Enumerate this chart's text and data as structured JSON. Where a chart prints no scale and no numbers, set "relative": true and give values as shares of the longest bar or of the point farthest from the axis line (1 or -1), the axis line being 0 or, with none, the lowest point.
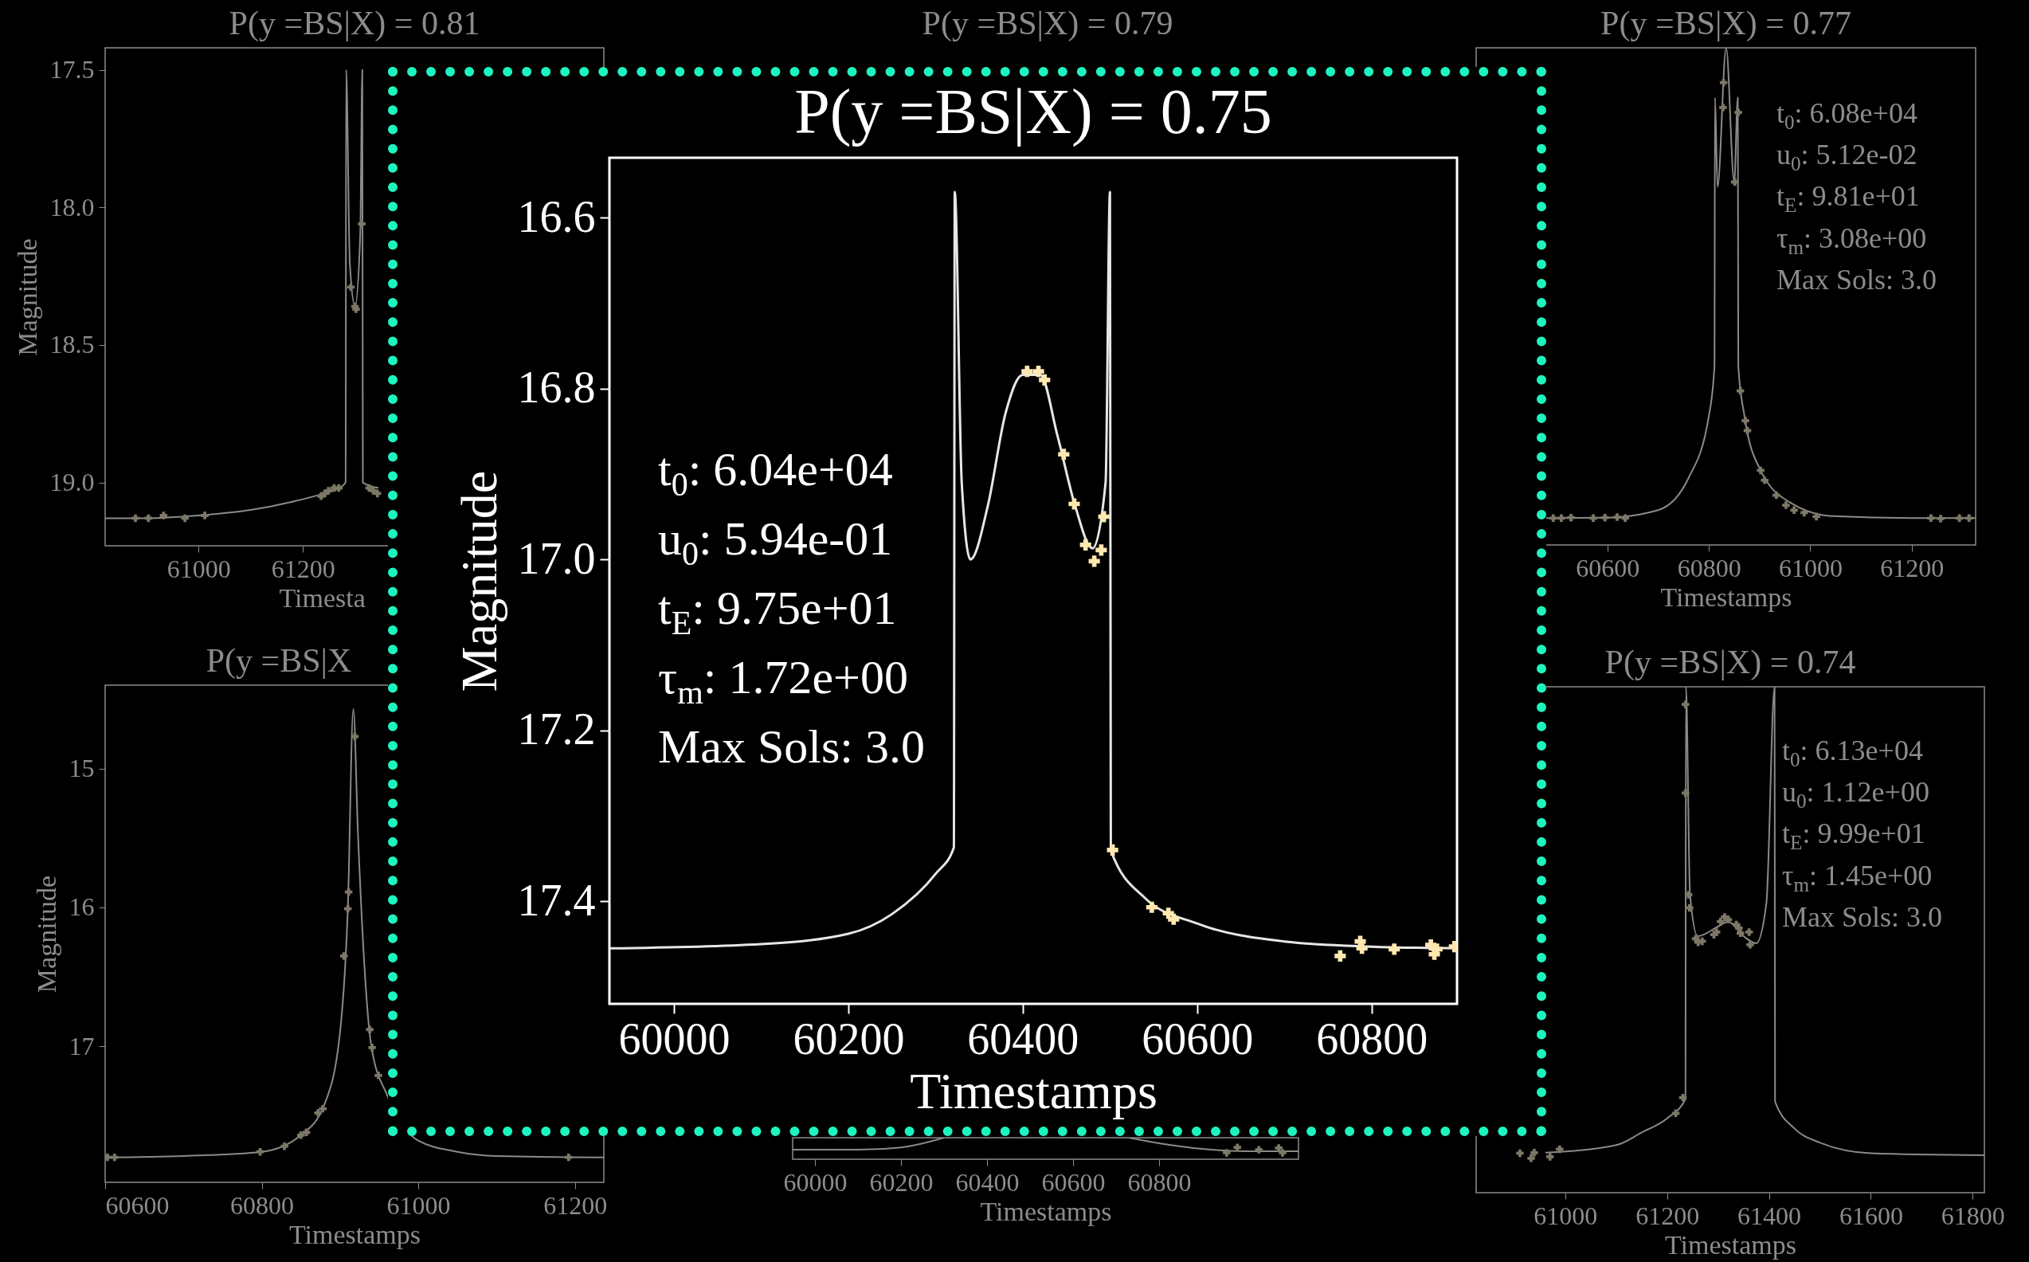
{
  "chart_data": [
    {
      "type": "line",
      "title": "P(y =BS|X) = 0.81",
      "xlabel": "Timesta",
      "ylabel": "Magnitude",
      "xlim": [
        60821,
        61777
      ],
      "xticks": [
        61000,
        61200
      ],
      "ylim": [
        19.23,
        17.42
      ],
      "yticks": [
        17.5,
        {
          "value": 18,
          "label": "18.0"
        },
        18.5,
        {
          "value": 19,
          "label": "19.0"
        }
      ],
      "series": [
        {
          "type": "line",
          "color": "#8a8a88",
          "x": [
            60821,
            60900,
            61000,
            61100,
            61180,
            61240,
            61270,
            61282,
            61283,
            61290,
            61300,
            61310,
            61314,
            61315,
            61345
          ],
          "values": [
            19.13,
            19.13,
            19.12,
            19.1,
            19.07,
            19.04,
            19.02,
            19.0,
            17.5,
            18.2,
            18.36,
            18.1,
            17.5,
            19.0,
            19.02
          ]
        },
        {
          "type": "scatter",
          "marker": "cross",
          "color": "#7d7866",
          "x": [
            60879,
            60904,
            60933,
            60974,
            61012,
            61235,
            61242,
            61249,
            61260,
            61269,
            61292,
            61300,
            61302,
            61313,
            61327,
            61335,
            61343
          ],
          "values": [
            19.13,
            19.13,
            19.12,
            19.13,
            19.12,
            19.05,
            19.04,
            19.03,
            19.02,
            19.02,
            18.29,
            18.36,
            18.37,
            18.06,
            19.02,
            19.03,
            19.04
          ]
        }
      ]
    },
    {
      "type": "other",
      "title": "P(y =BS|X) = 0.79"
    },
    {
      "type": "line",
      "title": "P(y =BS|X) = 0.77",
      "xlabel": "Timestamps",
      "relative": true,
      "xlim": [
        60341,
        61326
      ],
      "xticks": [
        60600,
        60800,
        61000,
        61200
      ],
      "annotations": [
        "t$_{0}$: 6.08e+04",
        "u$_{0}$: 5.12e-02",
        "t$_{E}$: 9.81e+01",
        "τ$_{m}$: 3.08e+00",
        "Max Sols: 3.0"
      ],
      "series": [
        {
          "type": "line",
          "color": "#8a8a88",
          "x": [
            60477,
            60600,
            60700,
            60760,
            60800,
            60811,
            60812,
            60817,
            60834,
            60850,
            60857,
            60858,
            60870,
            60902,
            60964,
            61043,
            61200,
            61326
          ],
          "values": [
            0.054,
            0.055,
            0.07,
            0.135,
            0.26,
            0.36,
            0.9,
            0.72,
            1.0,
            0.73,
            0.9,
            0.36,
            0.26,
            0.15,
            0.083,
            0.058,
            0.054,
            0.054
          ]
        },
        {
          "type": "scatter",
          "marker": "cross",
          "color": "#7d7866",
          "x": [
            60493,
            60509,
            60528,
            60572,
            60595,
            60619,
            60635,
            60828,
            60829,
            60851,
            60858,
            60862,
            60872,
            60876,
            60902,
            60910,
            60933,
            60952,
            60968,
            60988,
            61012,
            61238,
            61257,
            61294,
            61313
          ],
          "values": [
            0.054,
            0.054,
            0.055,
            0.054,
            0.055,
            0.056,
            0.054,
            0.88,
            0.93,
            0.73,
            0.87,
            0.31,
            0.25,
            0.23,
            0.15,
            0.13,
            0.1,
            0.08,
            0.07,
            0.065,
            0.057,
            0.054,
            0.053,
            0.054,
            0.054
          ]
        }
      ]
    },
    {
      "type": "line",
      "title": "P(y =BS|X",
      "xlabel": "Timestamps",
      "ylabel": "Magnitude",
      "xlim": [
        60600,
        61237
      ],
      "xticks": [
        60600,
        60800,
        61000,
        61200
      ],
      "ylim": [
        17.98,
        14.4
      ],
      "yticks": [
        15,
        16,
        17
      ],
      "series": [
        {
          "type": "line",
          "color": "#8a8a88",
          "x": [
            60600,
            60700,
            60800,
            60850,
            60880,
            60900,
            60910,
            60917,
            60923,
            60940,
            60960,
            61000,
            61050,
            61100,
            61237
          ],
          "values": [
            17.8,
            17.79,
            17.76,
            17.64,
            17.42,
            16.9,
            16.0,
            14.57,
            15.48,
            17.0,
            17.35,
            17.68,
            17.76,
            17.79,
            17.8
          ]
        },
        {
          "type": "scatter",
          "marker": "cross",
          "color": "#7d7866",
          "x": [
            60603,
            60612,
            60798,
            60829,
            60850,
            60857,
            60872,
            60878,
            60905,
            60910,
            60911,
            60919,
            60938,
            60941,
            60949,
            61192
          ],
          "values": [
            17.8,
            17.8,
            17.76,
            17.72,
            17.64,
            17.62,
            17.48,
            17.45,
            16.35,
            16.01,
            15.89,
            14.77,
            16.88,
            17.01,
            17.21,
            17.8
          ]
        }
      ]
    },
    {
      "type": "line",
      "xlabel": "Timestamps",
      "relative": true,
      "xlim": [
        59948,
        61124
      ],
      "xticks": [
        60000,
        60200,
        60400,
        60600,
        60800
      ],
      "series": [
        {
          "type": "line",
          "color": "#8a8a88",
          "x": [
            59948,
            60100,
            60200,
            60300
          ],
          "values": [
            0.44,
            0.44,
            0.55,
            1.0
          ]
        },
        {
          "type": "line",
          "color": "#8a8a88",
          "x": [
            60730,
            60800,
            60900,
            61000,
            61124
          ],
          "values": [
            1.0,
            0.74,
            0.48,
            0.37,
            0.37
          ]
        },
        {
          "type": "scatter",
          "marker": "cross",
          "color": "#7d7866",
          "x": [
            60957,
            60982,
            61032,
            61078,
            61087
          ],
          "values": [
            0.3,
            0.55,
            0.44,
            0.52,
            0.3
          ]
        }
      ]
    },
    {
      "type": "line",
      "title": "P(y =BS|X) = 0.74",
      "xlabel": "Timestamps",
      "relative": true,
      "xlim": [
        60825,
        61823
      ],
      "xticks": [
        61000,
        61200,
        61400,
        61600,
        61800
      ],
      "annotations": [
        "t$_{0}$: 6.13e+04",
        "u$_{0}$: 1.12e+00",
        "t$_{E}$: 9.99e+01",
        "τ$_{m}$: 1.45e+00",
        "Max Sols: 3.0"
      ],
      "series": [
        {
          "type": "line",
          "color": "#8a8a88",
          "x": [
            60961,
            61100,
            61150,
            61200,
            61236,
            61237,
            61245,
            61260,
            61300,
            61320,
            61350,
            61375,
            61395,
            61411,
            61412,
            61450,
            61500,
            61600,
            61823
          ],
          "values": [
            0.079,
            0.094,
            0.119,
            0.147,
            0.185,
            1.0,
            0.589,
            0.507,
            0.526,
            0.536,
            0.507,
            0.493,
            0.573,
            1.0,
            0.18,
            0.127,
            0.099,
            0.078,
            0.074
          ]
        },
        {
          "type": "scatter",
          "marker": "cross",
          "color": "#7d7866",
          "x": [
            60911,
            60933,
            60939,
            60970,
            60989,
            61217,
            61231,
            61236,
            61236,
            61242,
            61244,
            61256,
            61261,
            61269,
            61292,
            61297,
            61305,
            61313,
            61320,
            61336,
            61341,
            61344,
            61361,
            61363
          ],
          "values": [
            0.078,
            0.068,
            0.079,
            0.071,
            0.086,
            0.157,
            0.188,
            0.965,
            0.79,
            0.589,
            0.563,
            0.502,
            0.495,
            0.497,
            0.51,
            0.515,
            0.536,
            0.545,
            0.54,
            0.53,
            0.523,
            0.513,
            0.515,
            0.49
          ]
        }
      ]
    },
    {
      "type": "line",
      "title": "P(y =BS|X) = 0.75",
      "xlabel": "Timestamps",
      "ylabel": "Magnitude",
      "xlim": [
        59926,
        60898
      ],
      "xticks": [
        60000,
        60200,
        60400,
        60600,
        60800
      ],
      "ylim": [
        17.52,
        16.53
      ],
      "yticks": [
        16.6,
        16.8,
        {
          "value": 17,
          "label": "17.0"
        },
        17.2,
        17.4
      ],
      "annotations": [
        "t$_{0}$: 6.04e+04",
        "u$_{0}$: 5.94e-01",
        "t$_{E}$: 9.75e+01",
        "τ$_{m}$: 1.72e+00",
        "Max Sols: 3.0"
      ],
      "series": [
        {
          "type": "line",
          "color": "#e6e6e6",
          "x": [
            59926,
            60100,
            60200,
            60250,
            60300,
            60321,
            60322,
            60330,
            60340,
            60360,
            60380,
            60400,
            60420,
            60440,
            60460,
            60480,
            60495,
            60500,
            60501,
            60540,
            60600,
            60700,
            60800,
            60898
          ],
          "values": [
            17.455,
            17.45,
            17.438,
            17.415,
            17.368,
            17.337,
            16.57,
            16.91,
            17.0,
            16.937,
            16.83,
            16.784,
            16.784,
            16.856,
            16.937,
            16.987,
            16.91,
            16.57,
            17.34,
            17.396,
            17.426,
            17.447,
            17.453,
            17.455
          ]
        },
        {
          "type": "scatter",
          "marker": "cross",
          "color": "#ffe8b0",
          "x": [
            60405,
            60418,
            60425,
            60447,
            60459,
            60472,
            60482,
            60490,
            60493,
            60503,
            60548,
            60567,
            60573,
            60764,
            60787,
            60789,
            60826,
            60868,
            60872,
            60875,
            60895
          ],
          "values": [
            16.78,
            16.78,
            16.79,
            16.877,
            16.935,
            16.983,
            17.002,
            16.989,
            16.95,
            17.34,
            17.407,
            17.414,
            17.421,
            17.464,
            17.447,
            17.455,
            17.456,
            17.451,
            17.462,
            17.456,
            17.453
          ]
        }
      ]
    }
  ]
}
